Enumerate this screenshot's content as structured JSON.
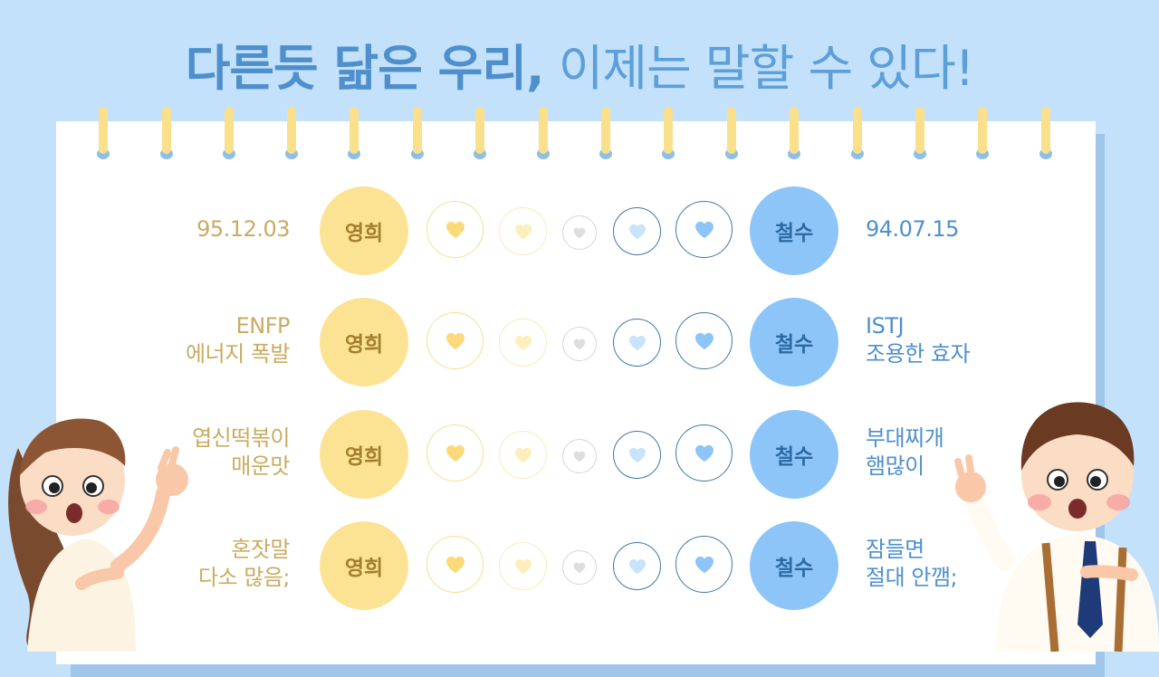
{
  "title": {
    "bold": "다른듯 닮은 우리,",
    "thin": " 이제는 말할 수 있다!"
  },
  "colors": {
    "accent_yellow": "#fce394",
    "accent_blue": "#8dc5f8",
    "left_text": "#c9ab62",
    "right_text": "#4f8fcc",
    "background": "#c3e1fb"
  },
  "rows": [
    {
      "left": [
        "95.12.03"
      ],
      "left_name": "영희",
      "right_name": "철수",
      "right": [
        "94.07.15"
      ]
    },
    {
      "left": [
        "ENFP",
        "에너지 폭발"
      ],
      "left_name": "영희",
      "right_name": "철수",
      "right": [
        "ISTJ",
        "조용한 효자"
      ]
    },
    {
      "left": [
        "엽신떡볶이",
        "매운맛"
      ],
      "left_name": "영희",
      "right_name": "철수",
      "right": [
        "부대찌개",
        "햄많이"
      ]
    },
    {
      "left": [
        "혼잣말",
        "다소 많음;"
      ],
      "left_name": "영희",
      "right_name": "철수",
      "right": [
        "잠들면",
        "절대 안깸;"
      ]
    }
  ]
}
